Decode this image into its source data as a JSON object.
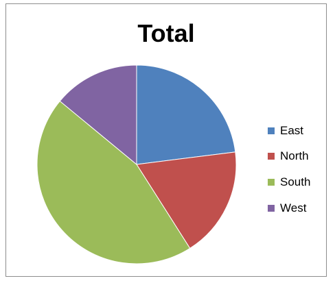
{
  "chart_data": {
    "type": "pie",
    "title": "Total",
    "categories": [
      "East",
      "North",
      "South",
      "West"
    ],
    "values": [
      23,
      18,
      45,
      14
    ],
    "colors": [
      "#4f81bd",
      "#c0504d",
      "#9bbb59",
      "#8064a2"
    ],
    "legend_position": "right",
    "start": "12 o'clock",
    "direction": "clockwise"
  }
}
